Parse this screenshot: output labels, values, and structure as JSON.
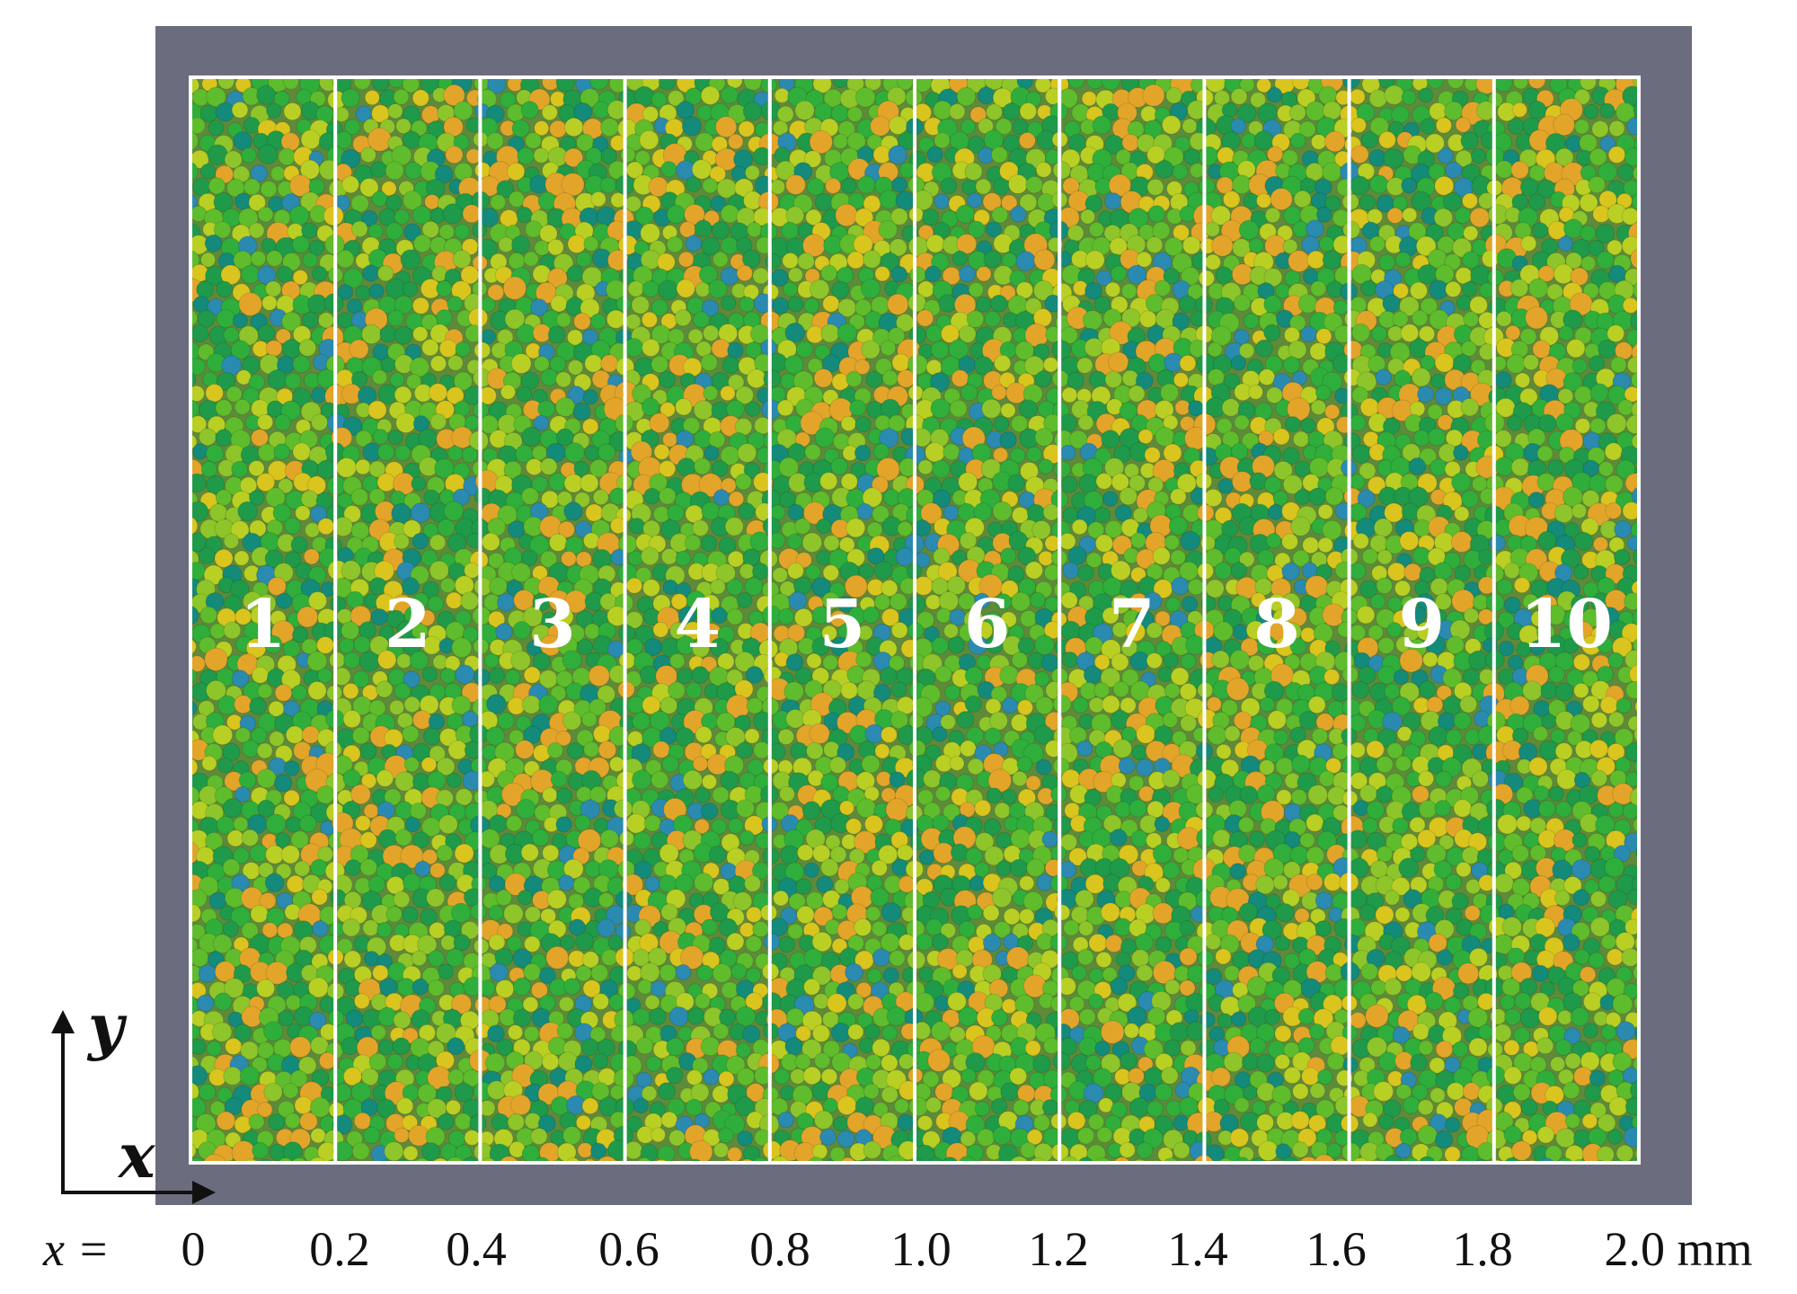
{
  "slice_labels": [
    "1",
    "2",
    "3",
    "4",
    "5",
    "6",
    "7",
    "8",
    "9",
    "10"
  ],
  "axis": {
    "prefix": "x =",
    "ticks": [
      "0",
      "0.2",
      "0.4",
      "0.6",
      "0.8",
      "1.0",
      "1.2",
      "1.4",
      "1.6",
      "1.8",
      "2.0 mm"
    ],
    "y_letter": "y",
    "x_letter": "x"
  },
  "colors": {
    "frame": "#6b6d7e",
    "divider": "#ffffff",
    "particle_base": "#5e8a3a",
    "particle_palette": [
      "#1e9a4a",
      "#2fae3c",
      "#5fbc2c",
      "#8ec52a",
      "#b9cf24",
      "#d9c51e",
      "#e2a52a",
      "#138a7a",
      "#2a8ab0"
    ]
  }
}
